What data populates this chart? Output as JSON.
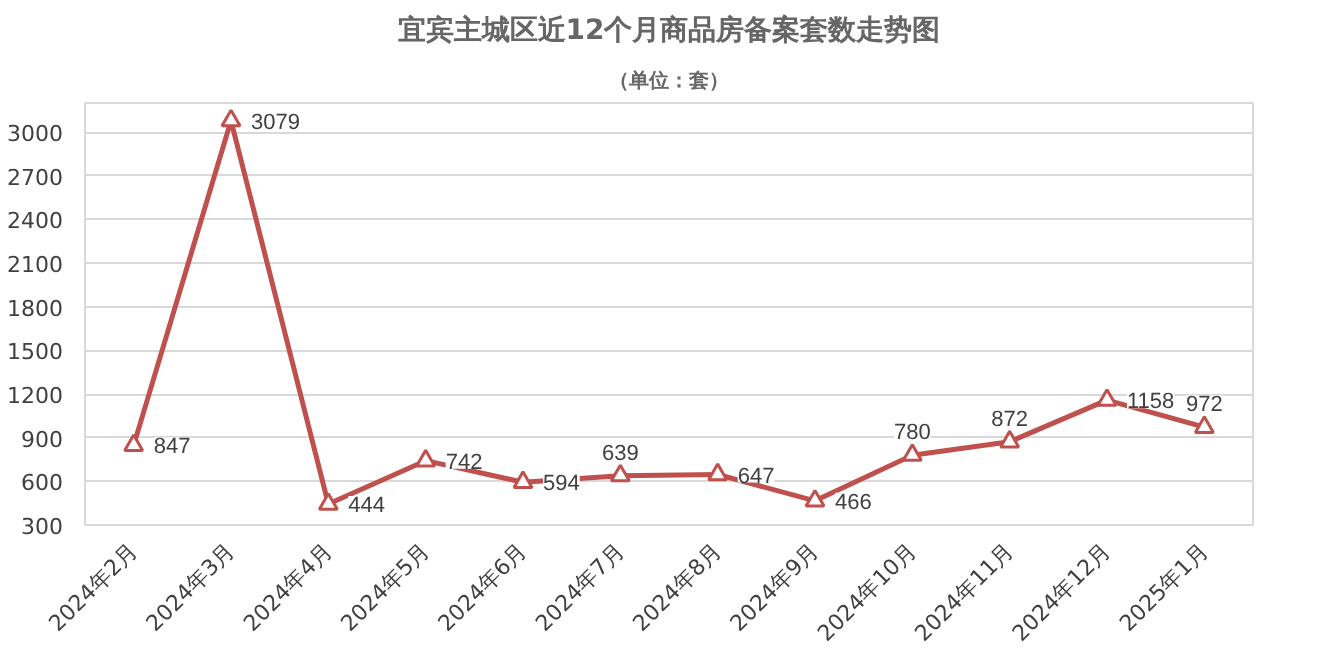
{
  "chart_data": {
    "type": "line",
    "title": "宜宾主城区近12个月商品房备案套数走势图",
    "subtitle": "（单位：套）",
    "categories": [
      "2024年2月",
      "2024年3月",
      "2024年4月",
      "2024年5月",
      "2024年6月",
      "2024年7月",
      "2024年8月",
      "2024年9月",
      "2024年10月",
      "2024年11月",
      "2024年12月",
      "2025年1月"
    ],
    "series": [
      {
        "color": "#c0504d",
        "values": [
          847,
          3079,
          444,
          742,
          594,
          639,
          647,
          466,
          780,
          872,
          1158,
          972
        ]
      }
    ],
    "ylim": [
      300,
      3200
    ],
    "yticks": [
      300,
      600,
      900,
      1200,
      1500,
      1800,
      2100,
      2400,
      2700,
      3000
    ],
    "grid": "y",
    "marker": "triangle",
    "line_style": "solid",
    "data_labels": true
  }
}
